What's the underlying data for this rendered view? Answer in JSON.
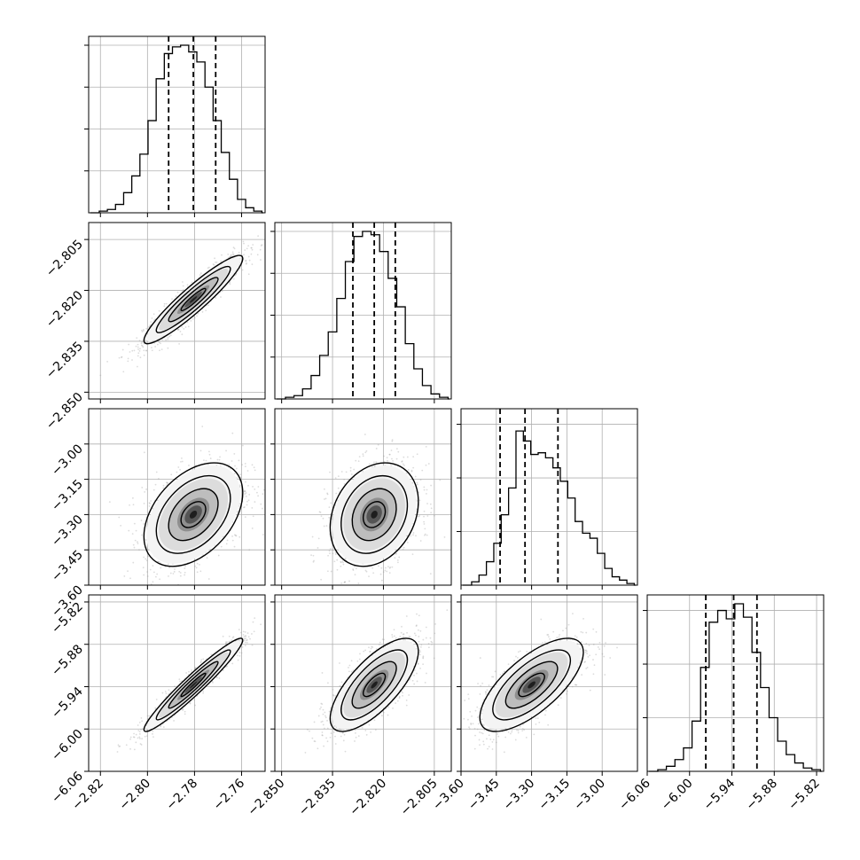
{
  "chart_data": {
    "type": "corner",
    "title": "",
    "parameters": [
      {
        "label": "",
        "range": [
          -2.825,
          -2.75
        ],
        "ticks": [
          -2.82,
          -2.8,
          -2.78,
          -2.76
        ],
        "tick_labels": [
          "−2.82",
          "−2.80",
          "−2.78",
          "−2.76"
        ],
        "quantiles": [
          -2.791,
          -2.7805,
          -2.771
        ],
        "histogram": [
          1,
          2,
          5,
          12,
          22,
          35,
          55,
          80,
          95,
          99,
          100,
          96,
          90,
          75,
          55,
          36,
          20,
          8,
          3,
          1
        ],
        "hist_ymax": 100,
        "hist_gridlines": [
          25,
          50,
          75,
          100
        ]
      },
      {
        "label": "",
        "range": [
          -2.852,
          -2.8
        ],
        "ticks": [
          -2.85,
          -2.835,
          -2.82,
          -2.805
        ],
        "tick_labels": [
          "−2.850",
          "−2.835",
          "−2.820",
          "−2.805"
        ],
        "quantiles": [
          -2.829,
          -2.8227,
          -2.8165
        ],
        "histogram": [
          1,
          2,
          6,
          14,
          26,
          40,
          60,
          82,
          97,
          100,
          98,
          88,
          72,
          55,
          33,
          18,
          8,
          3,
          1
        ],
        "hist_ymax": 100,
        "hist_gridlines": [
          25,
          50,
          75,
          100
        ]
      },
      {
        "label": "",
        "range": [
          -3.6,
          -2.85
        ],
        "ticks": [
          -3.6,
          -3.45,
          -3.3,
          -3.15,
          -3.0
        ],
        "tick_labels": [
          "−3.60",
          "−3.45",
          "−3.30",
          "−3.15",
          "−3.00"
        ],
        "quantiles": [
          -3.434,
          -3.328,
          -3.188
        ],
        "histogram": [
          2,
          6,
          14,
          25,
          42,
          58,
          92,
          86,
          78,
          79,
          76,
          70,
          62,
          52,
          38,
          31,
          28,
          19,
          10,
          5,
          3,
          1
        ],
        "hist_ymax": 100,
        "hist_gridlines": [
          32,
          64,
          96
        ]
      },
      {
        "label": "",
        "range": [
          -6.06,
          -5.81
        ],
        "ticks": [
          -6.06,
          -6.0,
          -5.94,
          -5.88,
          -5.82
        ],
        "tick_labels": [
          "−6.06",
          "−6.00",
          "−5.94",
          "−5.88",
          "−5.82"
        ],
        "quantiles": [
          -5.977,
          -5.9375,
          -5.9045
        ],
        "histogram": [
          1,
          3,
          7,
          14,
          30,
          62,
          89,
          96,
          91,
          100,
          92,
          71,
          50,
          32,
          18,
          10,
          5,
          2,
          1
        ],
        "hist_ymax": 100,
        "hist_gridlines": [
          32,
          64,
          96
        ]
      }
    ],
    "pairs": [
      {
        "x": 0,
        "y": 1,
        "mean": [
          -2.7805,
          -2.8227
        ],
        "sd": [
          0.0105,
          0.0065
        ],
        "corr": 0.93
      },
      {
        "x": 0,
        "y": 2,
        "mean": [
          -2.7805,
          -3.3
        ],
        "sd": [
          0.0105,
          0.11
        ],
        "corr": 0.42
      },
      {
        "x": 1,
        "y": 2,
        "mean": [
          -2.8227,
          -3.3
        ],
        "sd": [
          0.0065,
          0.11
        ],
        "corr": 0.25
      },
      {
        "x": 0,
        "y": 3,
        "mean": [
          -2.7805,
          -5.9375
        ],
        "sd": [
          0.0105,
          0.033
        ],
        "corr": 0.96
      },
      {
        "x": 1,
        "y": 3,
        "mean": [
          -2.8227,
          -5.9375
        ],
        "sd": [
          0.0065,
          0.033
        ],
        "corr": 0.72
      },
      {
        "x": 2,
        "y": 3,
        "mean": [
          -3.3,
          -5.9375
        ],
        "sd": [
          0.11,
          0.033
        ],
        "corr": 0.7
      }
    ],
    "contour_levels_sigma": [
      0.5,
      1.0,
      1.5,
      2.0
    ],
    "grid": true,
    "colors": {
      "line": "#000000",
      "grid": "#b0b0b0",
      "scatter": "#9a9a9a"
    }
  }
}
